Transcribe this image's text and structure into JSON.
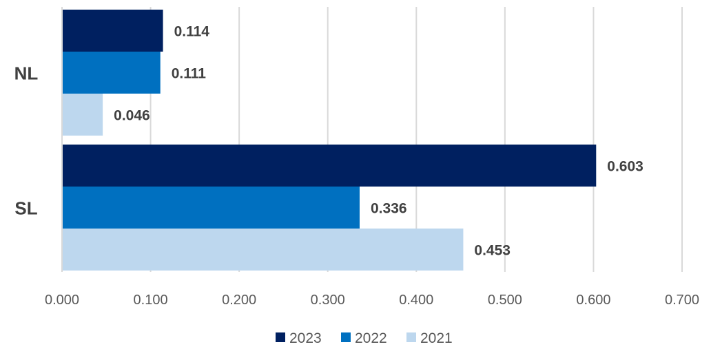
{
  "chart_data": {
    "type": "bar",
    "orientation": "horizontal",
    "categories": [
      "NL",
      "SL"
    ],
    "series": [
      {
        "name": "2023",
        "color": "#002060",
        "values": [
          0.114,
          0.603
        ],
        "labels": [
          "0.114",
          "0.603"
        ]
      },
      {
        "name": "2022",
        "color": "#0070c0",
        "values": [
          0.111,
          0.336
        ],
        "labels": [
          "0.111",
          "0.336"
        ]
      },
      {
        "name": "2021",
        "color": "#bdd7ee",
        "values": [
          0.046,
          0.453
        ],
        "labels": [
          "0.046",
          "0.453"
        ]
      }
    ],
    "xlim": [
      0,
      0.7
    ],
    "xticks": [
      "0.000",
      "0.100",
      "0.200",
      "0.300",
      "0.400",
      "0.500",
      "0.600",
      "0.700"
    ],
    "grid": "vertical",
    "legend": "bottom",
    "title": "",
    "xlabel": "",
    "ylabel": ""
  }
}
